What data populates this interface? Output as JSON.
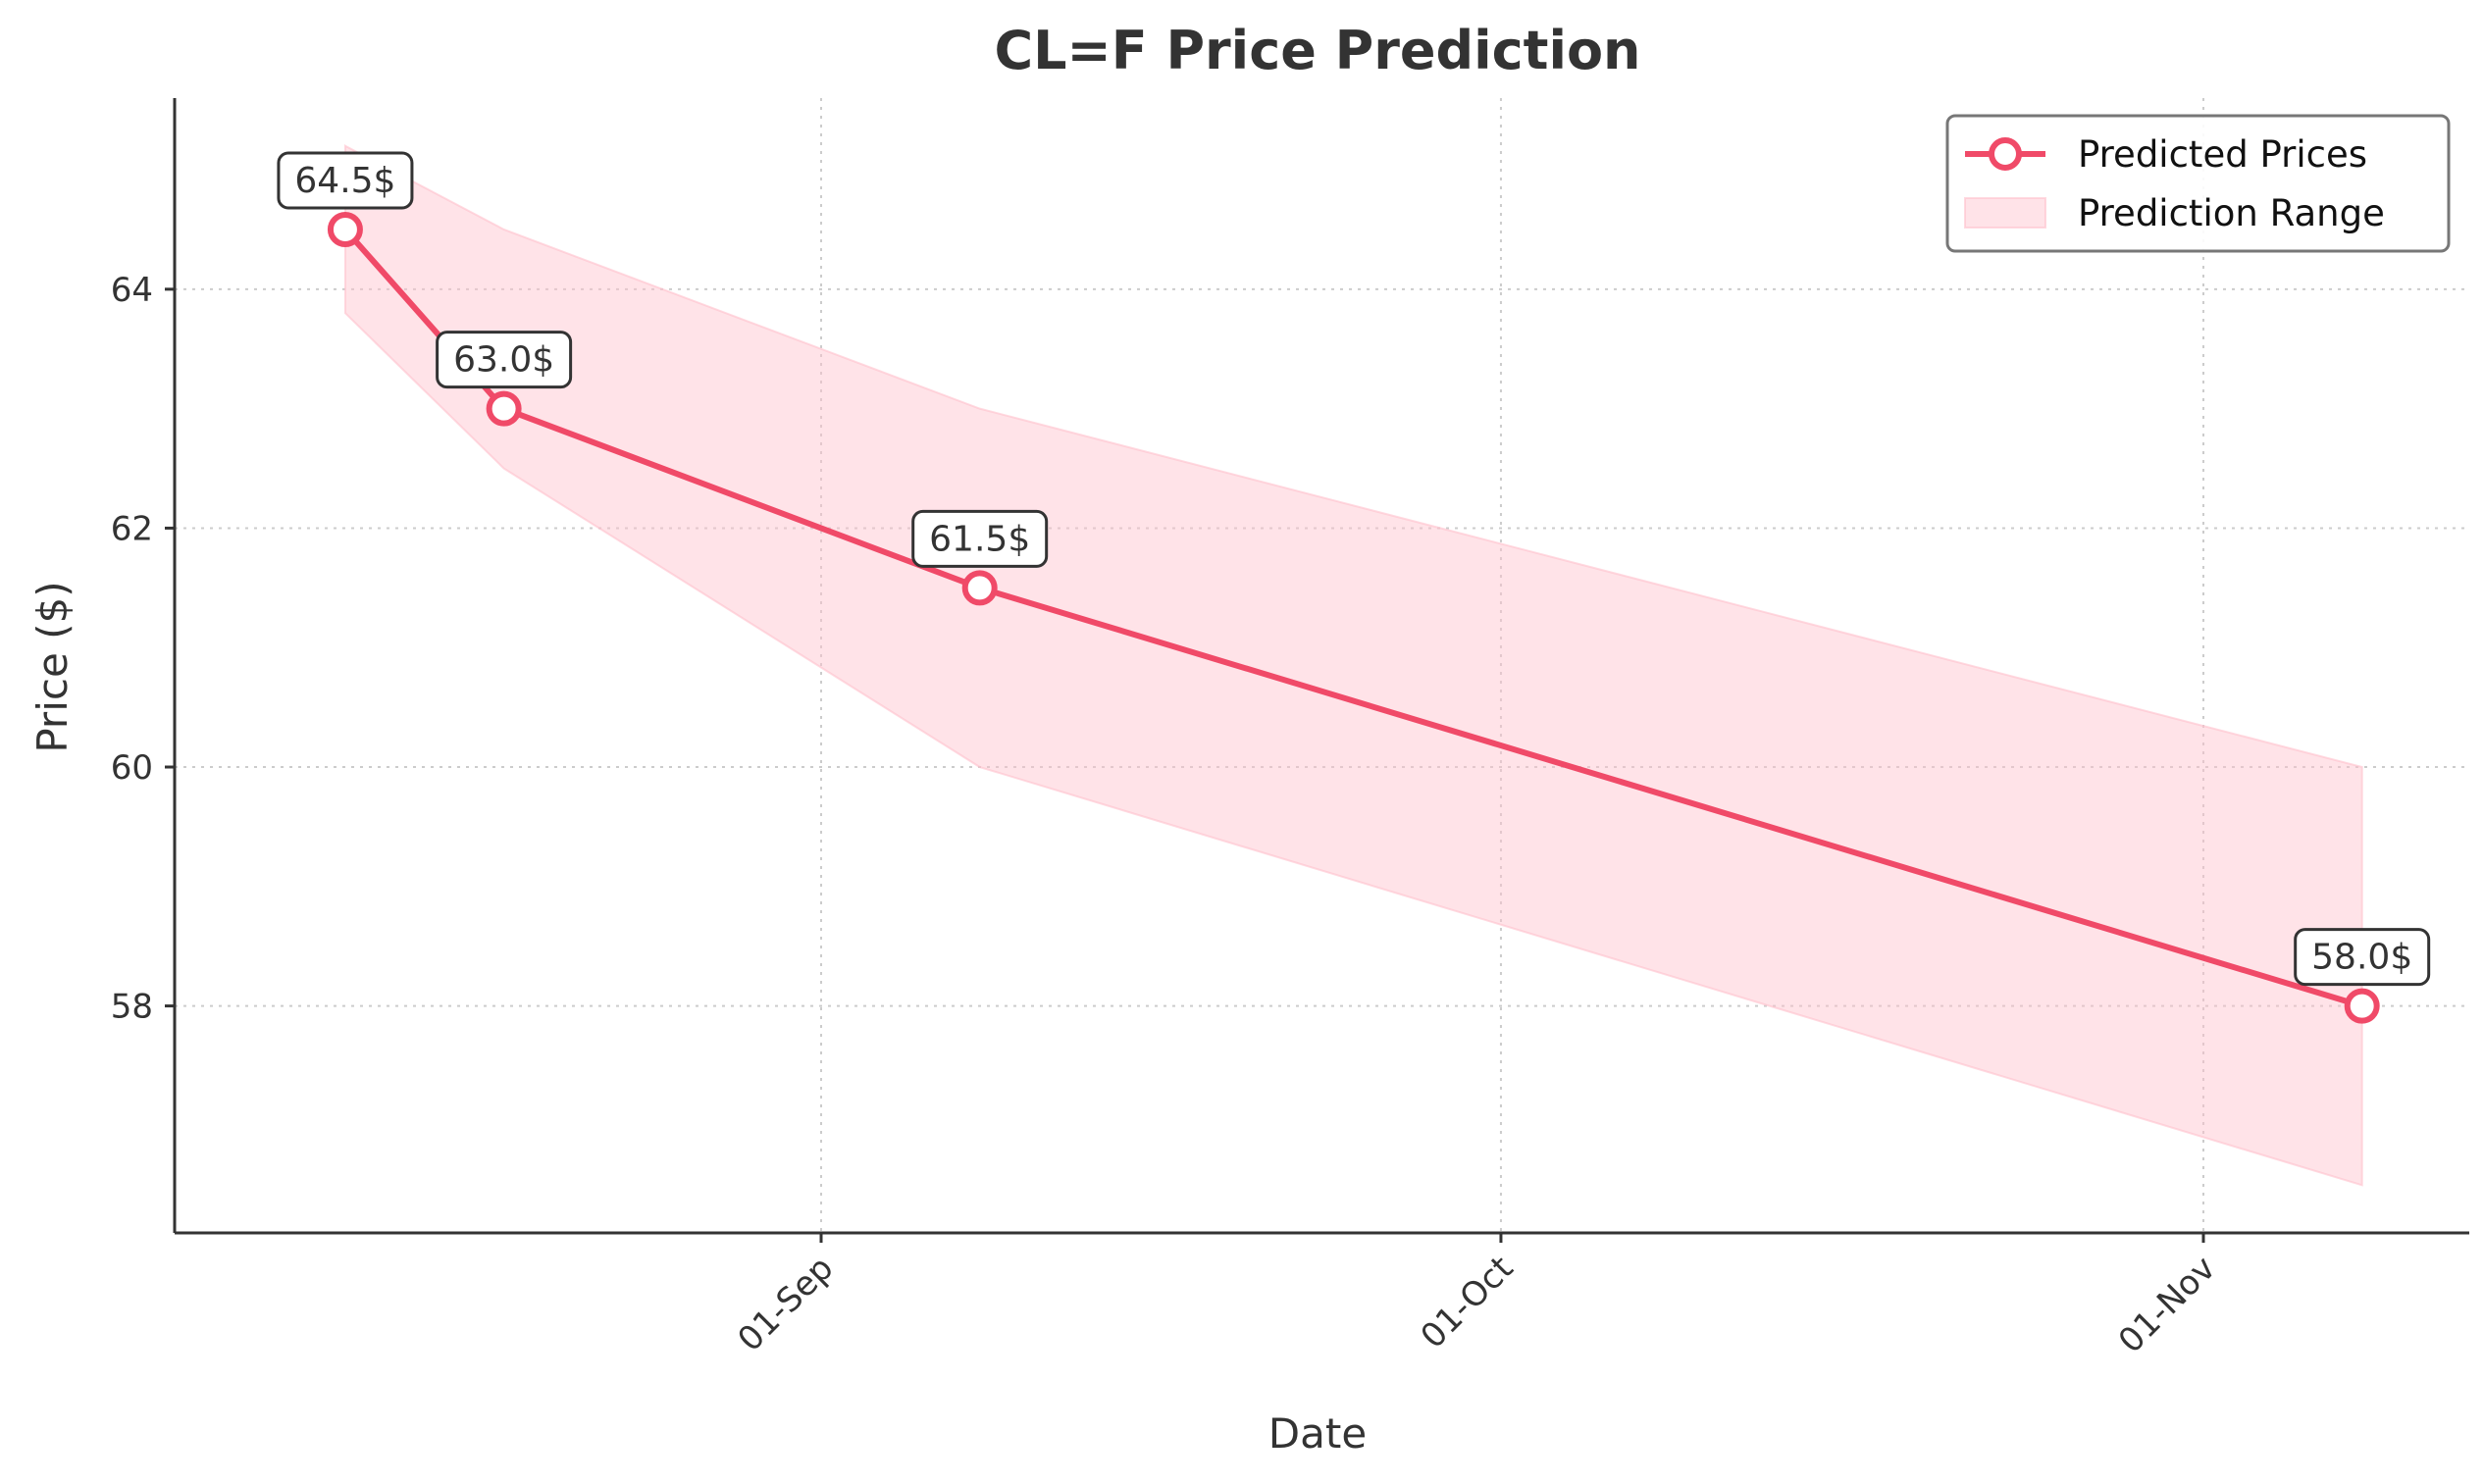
{
  "chart_data": {
    "type": "line",
    "title": "CL=F Price Prediction",
    "xlabel": "Date",
    "ylabel": "Price ($)",
    "x_ticks": [
      "01-Sep",
      "01-Oct",
      "01-Nov"
    ],
    "y_ticks": [
      58,
      60,
      62,
      64
    ],
    "ylim": [
      56.1,
      65.6
    ],
    "grid": true,
    "legend_location": "top-right",
    "series": [
      {
        "name": "Predicted Prices",
        "kind": "line",
        "color": "#f04a68",
        "points": [
          {
            "date": "2025-08-11",
            "value": 64.5
          },
          {
            "date": "2025-08-18",
            "value": 63.0
          },
          {
            "date": "2025-09-08",
            "value": 61.5
          },
          {
            "date": "2025-11-08",
            "value": 58.0
          }
        ]
      },
      {
        "name": "Prediction Range",
        "kind": "band",
        "color": "#ffc0cb",
        "points": [
          {
            "date": "2025-08-11",
            "low": 63.8,
            "high": 65.2
          },
          {
            "date": "2025-08-18",
            "low": 62.5,
            "high": 64.5
          },
          {
            "date": "2025-09-08",
            "low": 60.0,
            "high": 63.0
          },
          {
            "date": "2025-11-08",
            "low": 56.5,
            "high": 60.0
          }
        ]
      }
    ],
    "annotations": [
      "64.5$",
      "63.0$",
      "61.5$",
      "58.0$"
    ]
  }
}
